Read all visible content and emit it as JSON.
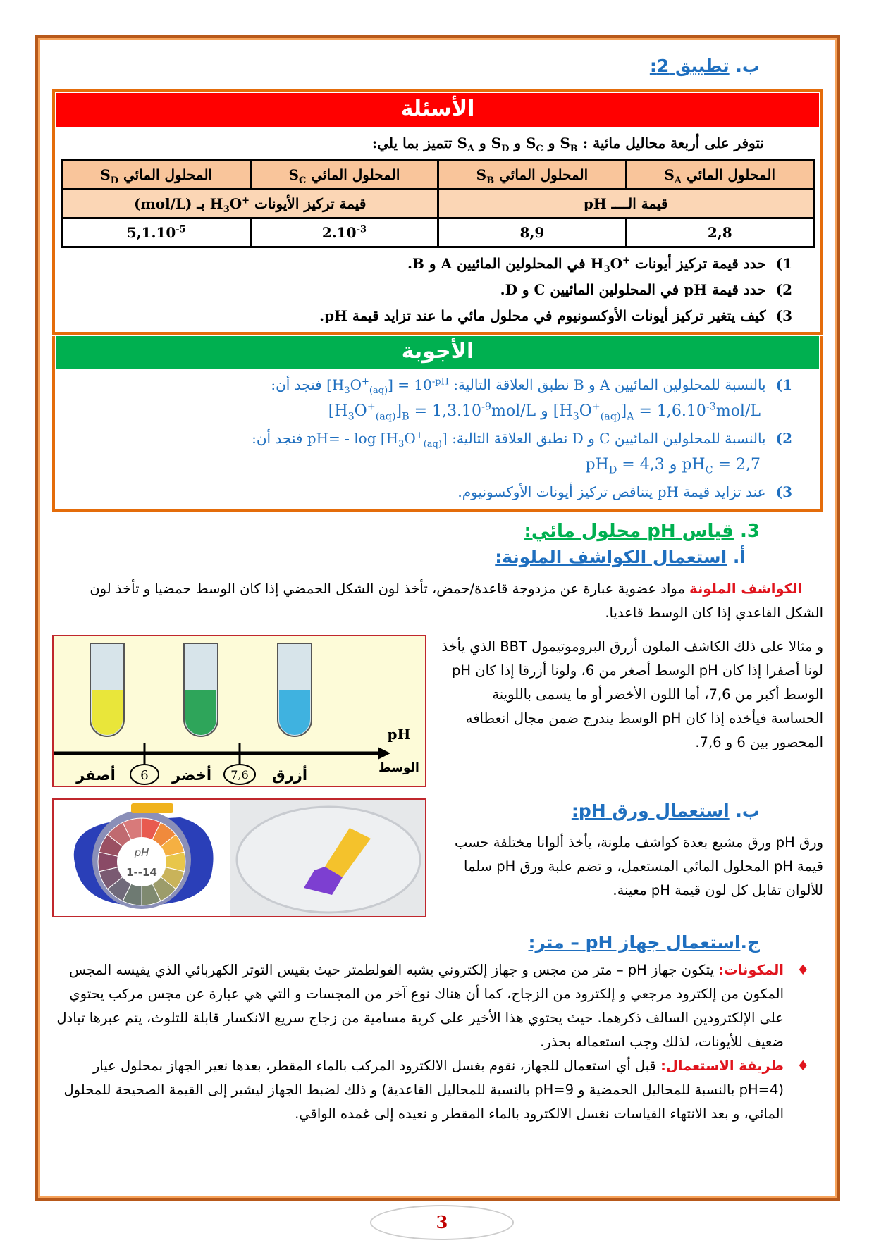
{
  "section_b": {
    "prefix": "ب.",
    "title": "تطبيق 2:"
  },
  "questions": {
    "header": "الأسئلة",
    "header_color": "#ff0000",
    "intro_pre": "نتوفر على أربعة محاليل مائية :",
    "intro_solutions": [
      [
        {
          "t": "S"
        },
        {
          "t": "A",
          "s": "sub"
        }
      ],
      [
        {
          "t": " و S"
        },
        {
          "t": "B",
          "s": "sub"
        }
      ],
      [
        {
          "t": " و S"
        },
        {
          "t": "C",
          "s": "sub"
        }
      ],
      [
        {
          "t": " و S"
        },
        {
          "t": "D",
          "s": "sub"
        }
      ]
    ],
    "intro_post": "تتميز بما يلي:",
    "table": {
      "col_label": "المحلول المائي",
      "cols": [
        [
          "S",
          "A"
        ],
        [
          "S",
          "B"
        ],
        [
          "S",
          "C"
        ],
        [
          "S",
          "D"
        ]
      ],
      "ph_label": "قيمة الــــ pH",
      "conc_label_pre": "قيمة تركيز الأيونات",
      "conc_label_formula": [
        {
          "t": "H"
        },
        {
          "t": "3",
          "s": "sub"
        },
        {
          "t": "O"
        },
        {
          "t": "+",
          "s": "sup"
        }
      ],
      "conc_label_post": "بـ (mol/L)",
      "values": [
        [
          {
            "t": "2,8"
          }
        ],
        [
          {
            "t": "8,9"
          }
        ],
        [
          {
            "t": "2.10"
          },
          {
            "t": "-3",
            "s": "sup"
          }
        ],
        [
          {
            "t": "5,1.10"
          },
          {
            "t": "-5",
            "s": "sup"
          }
        ]
      ]
    },
    "items": [
      {
        "num": "1)",
        "pre": "حدد قيمة تركيز أيونات",
        "formula": [
          {
            "t": "H"
          },
          {
            "t": "3",
            "s": "sub"
          },
          {
            "t": "O"
          },
          {
            "t": "+",
            "s": "sup"
          }
        ],
        "post": "في المحلولين المائيين A و B."
      },
      {
        "num": "2)",
        "pre": "حدد قيمة pH في المحلولين المائيين C و D.",
        "formula": [],
        "post": ""
      },
      {
        "num": "3)",
        "pre": "كيف يتغير تركيز أيونات الأوكسونيوم في محلول مائي ما عند تزايد قيمة pH.",
        "formula": [],
        "post": ""
      }
    ]
  },
  "answers": {
    "header": "الأجوبة",
    "header_color": "#00b050",
    "a1": {
      "num": "1)",
      "pre": "بالنسبة للمحلولين المائيين A و B نطبق العلاقة التالية:",
      "formula": [
        {
          "t": "[H"
        },
        {
          "t": "3",
          "s": "sub"
        },
        {
          "t": "O"
        },
        {
          "t": "+",
          "s": "sup"
        },
        {
          "t": "(aq)",
          "s": "sub"
        },
        {
          "t": "] = 10"
        },
        {
          "t": "-pH",
          "s": "sup"
        }
      ],
      "post": "فنجد أن:",
      "result_a": [
        {
          "t": "[H"
        },
        {
          "t": "3",
          "s": "sub"
        },
        {
          "t": "O"
        },
        {
          "t": "+",
          "s": "sup"
        },
        {
          "t": "(aq)",
          "s": "sub"
        },
        {
          "t": "]"
        },
        {
          "t": "A",
          "s": "sub"
        },
        {
          "t": " = 1,6.10"
        },
        {
          "t": "-3",
          "s": "sup"
        },
        {
          "t": "mol/L"
        }
      ],
      "and": "و",
      "result_b": [
        {
          "t": "[H"
        },
        {
          "t": "3",
          "s": "sub"
        },
        {
          "t": "O"
        },
        {
          "t": "+",
          "s": "sup"
        },
        {
          "t": "(aq)",
          "s": "sub"
        },
        {
          "t": "]"
        },
        {
          "t": "B",
          "s": "sub"
        },
        {
          "t": " = 1,3.10"
        },
        {
          "t": "-9",
          "s": "sup"
        },
        {
          "t": "mol/L"
        }
      ]
    },
    "a2": {
      "num": "2)",
      "pre": "بالنسبة للمحلولين المائيين C و D نطبق العلاقة التالية:",
      "formula": [
        {
          "t": "pH= - log [H"
        },
        {
          "t": "3",
          "s": "sub"
        },
        {
          "t": "O"
        },
        {
          "t": "+",
          "s": "sup"
        },
        {
          "t": "(aq)",
          "s": "sub"
        },
        {
          "t": "]"
        }
      ],
      "post": "فنجد أن:",
      "result_c": [
        {
          "t": "pH"
        },
        {
          "t": "C",
          "s": "sub"
        },
        {
          "t": " = 2,7"
        }
      ],
      "and": "و",
      "result_d": [
        {
          "t": "pH"
        },
        {
          "t": "D",
          "s": "sub"
        },
        {
          "t": " = 4,3"
        }
      ]
    },
    "a3": {
      "num": "3)",
      "text": "عند تزايد قيمة pH يتناقص تركيز أيونات الأوكسونيوم."
    }
  },
  "section3": {
    "num": "3.",
    "title": "قياس pH محلول مائي:"
  },
  "sub_a": {
    "prefix": "أ.",
    "title": "استعمال الكواشف الملونة:"
  },
  "indicators": {
    "term": "الكواشف الملونة",
    "definition": "مواد عضوية عبارة عن مزدوجة قاعدة/حمض، تأخذ لون الشكل الحمضي إذا كان الوسط حمضيا و تأخذ لون الشكل القاعدي إذا كان الوسط قاعديا.",
    "bbt_text": "و مثالا على ذلك الكاشف الملون أزرق البروموتيمول BBT الذي يأخذ لونا أصفرا إذا كان pH الوسط أصغر من 6، ولونا أزرقا إذا كان pH الوسط أكبر من 7,6، أما اللون الأخضر أو ما يسمى باللوينة الحساسة فيأخذه إذا كان pH الوسط يندرج ضمن مجال انعطافه المحصور بين 6 و 7,6.",
    "figure": {
      "axis_label_1": "pH",
      "axis_label_2": "الوسط",
      "zones": [
        "أصفر",
        "أخضر",
        "أزرق"
      ],
      "marks": [
        "6",
        "7,6"
      ],
      "tube_colors": [
        "#e9e63a",
        "#2ea55a",
        "#3fb2e0"
      ]
    }
  },
  "sub_b": {
    "prefix": "ب.",
    "title": "استعمال ورق pH:"
  },
  "ph_paper": {
    "text": "ورق pH ورق مشبع بعدة كواشف ملونة، يأخذ ألوانا مختلفة حسب قيمة pH المحلول المائي المستعمل، و تضم علبة ورق pH سلما للألوان تقابل كل لون قيمة pH معينة.",
    "box_label_1": "pH",
    "box_label_2": "1--14"
  },
  "sub_c": {
    "prefix": "ج.",
    "title": "استعمال جهاز pH – متر:"
  },
  "ph_meter": {
    "bullets": [
      {
        "label": "المكونات:",
        "text": "يتكون جهاز pH – متر من مجس و جهاز إلكتروني يشبه الفولطمتر حيث يقيس التوتر الكهربائي الذي يقيسه المجس المكون من إلكترود مرجعي و إلكترود من الزجاج، كما أن هناك نوع آخر من المجسات و التي هي عبارة عن مجس مركب يحتوي على الإلكترودين السالف ذكرهما. حيث يحتوي هذا الأخير على كرية مسامية من زجاج سريع الانكسار قابلة للتلوث، يتم عبرها تبادل ضعيف للأيونات، لذلك وجب استعماله بحذر."
      },
      {
        "label": "طريقة الاستعمال:",
        "text": "قبل أي استعمال للجهاز، نقوم بغسل الالكترود المركب بالماء المقطر، بعدها نعير الجهاز بمحلول عيار (pH=4 بالنسبة للمحاليل الحمضية و pH=9 بالنسبة للمحاليل القاعدية) و ذلك لضبط الجهاز ليشير إلى القيمة الصحيحة للمحلول المائي، و بعد الانتهاء القياسات نغسل الالكترود بالماء المقطر و نعيده إلى غمده الواقي."
      }
    ]
  },
  "page_number": "3"
}
